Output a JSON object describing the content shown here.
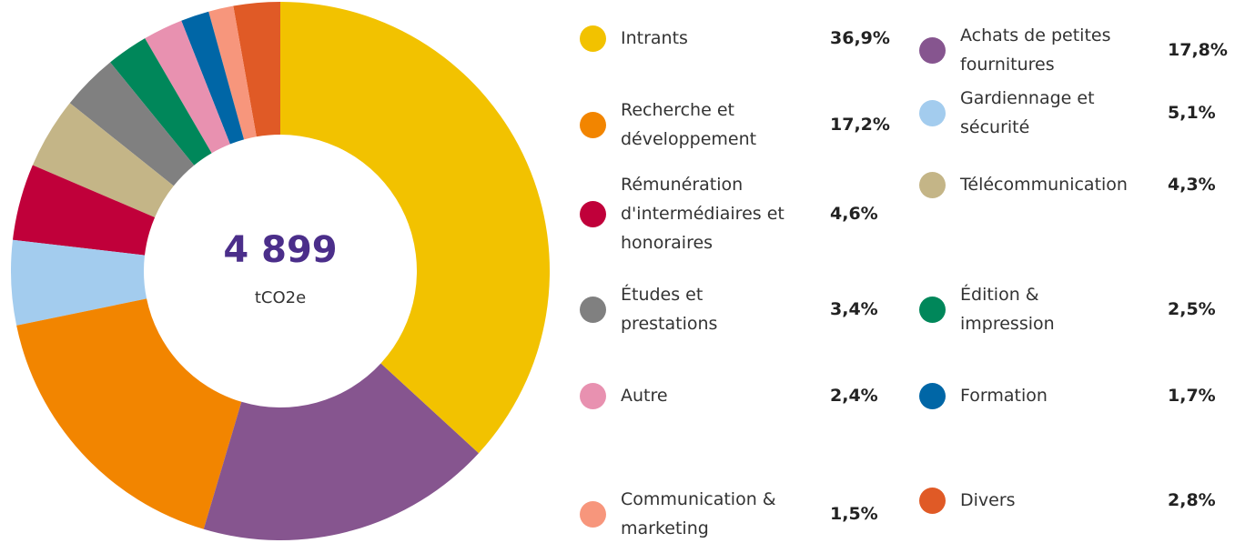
{
  "chart_data": {
    "type": "donut",
    "center_value": "4 899",
    "center_unit": "tCO2e",
    "series": [
      {
        "name": "Intrants",
        "color": "#f2c200",
        "value": 36.9,
        "value_label": "36,9%"
      },
      {
        "name": "Achats de petites fournitures",
        "color": "#86558f",
        "value": 17.8,
        "value_label": "17,8%"
      },
      {
        "name": "Recherche et développement",
        "color": "#f28500",
        "value": 17.2,
        "value_label": "17,2%"
      },
      {
        "name": "Gardiennage et sécurité",
        "color": "#a3ccee",
        "value": 5.1,
        "value_label": "5,1%"
      },
      {
        "name": "Rémunération d'intermédiaires et honoraires",
        "color": "#c0003a",
        "value": 4.6,
        "value_label": "4,6%"
      },
      {
        "name": "Télécommunication",
        "color": "#c4b587",
        "value": 4.3,
        "value_label": "4,3%"
      },
      {
        "name": "Études et prestations",
        "color": "#808080",
        "value": 3.4,
        "value_label": "3,4%"
      },
      {
        "name": "Édition & impression",
        "color": "#00875a",
        "value": 2.5,
        "value_label": "2,5%"
      },
      {
        "name": "Autre",
        "color": "#e891b0",
        "value": 2.4,
        "value_label": "2,4%"
      },
      {
        "name": "Formation",
        "color": "#0066a6",
        "value": 1.7,
        "value_label": "1,7%"
      },
      {
        "name": "Communication & marketing",
        "color": "#f7967c",
        "value": 1.5,
        "value_label": "1,5%"
      },
      {
        "name": "Divers",
        "color": "#e05a26",
        "value": 2.8,
        "value_label": "2,8%"
      }
    ]
  }
}
